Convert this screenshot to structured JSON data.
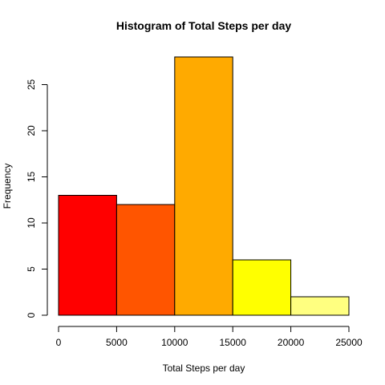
{
  "chart_data": {
    "type": "bar",
    "title": "Histogram of Total Steps per day",
    "xlabel": "Total Steps per day",
    "ylabel": "Frequency",
    "bins": [
      {
        "from": 0,
        "to": 5000,
        "count": 13,
        "color": "#FF0000"
      },
      {
        "from": 5000,
        "to": 10000,
        "count": 12,
        "color": "#FF5500"
      },
      {
        "from": 10000,
        "to": 15000,
        "count": 28,
        "color": "#FFAA00"
      },
      {
        "from": 15000,
        "to": 20000,
        "count": 6,
        "color": "#FFFF00"
      },
      {
        "from": 20000,
        "to": 25000,
        "count": 2,
        "color": "#FFFF80"
      }
    ],
    "xlim": [
      0,
      25000
    ],
    "ylim": [
      0,
      28
    ],
    "x_ticks": [
      "0",
      "5000",
      "10000",
      "15000",
      "20000",
      "25000"
    ],
    "x_tick_values": [
      0,
      5000,
      10000,
      15000,
      20000,
      25000
    ],
    "y_ticks": [
      "0",
      "5",
      "10",
      "15",
      "20",
      "25"
    ],
    "y_tick_values": [
      0,
      5,
      10,
      15,
      20,
      25
    ],
    "grid": false,
    "legend": "none"
  }
}
